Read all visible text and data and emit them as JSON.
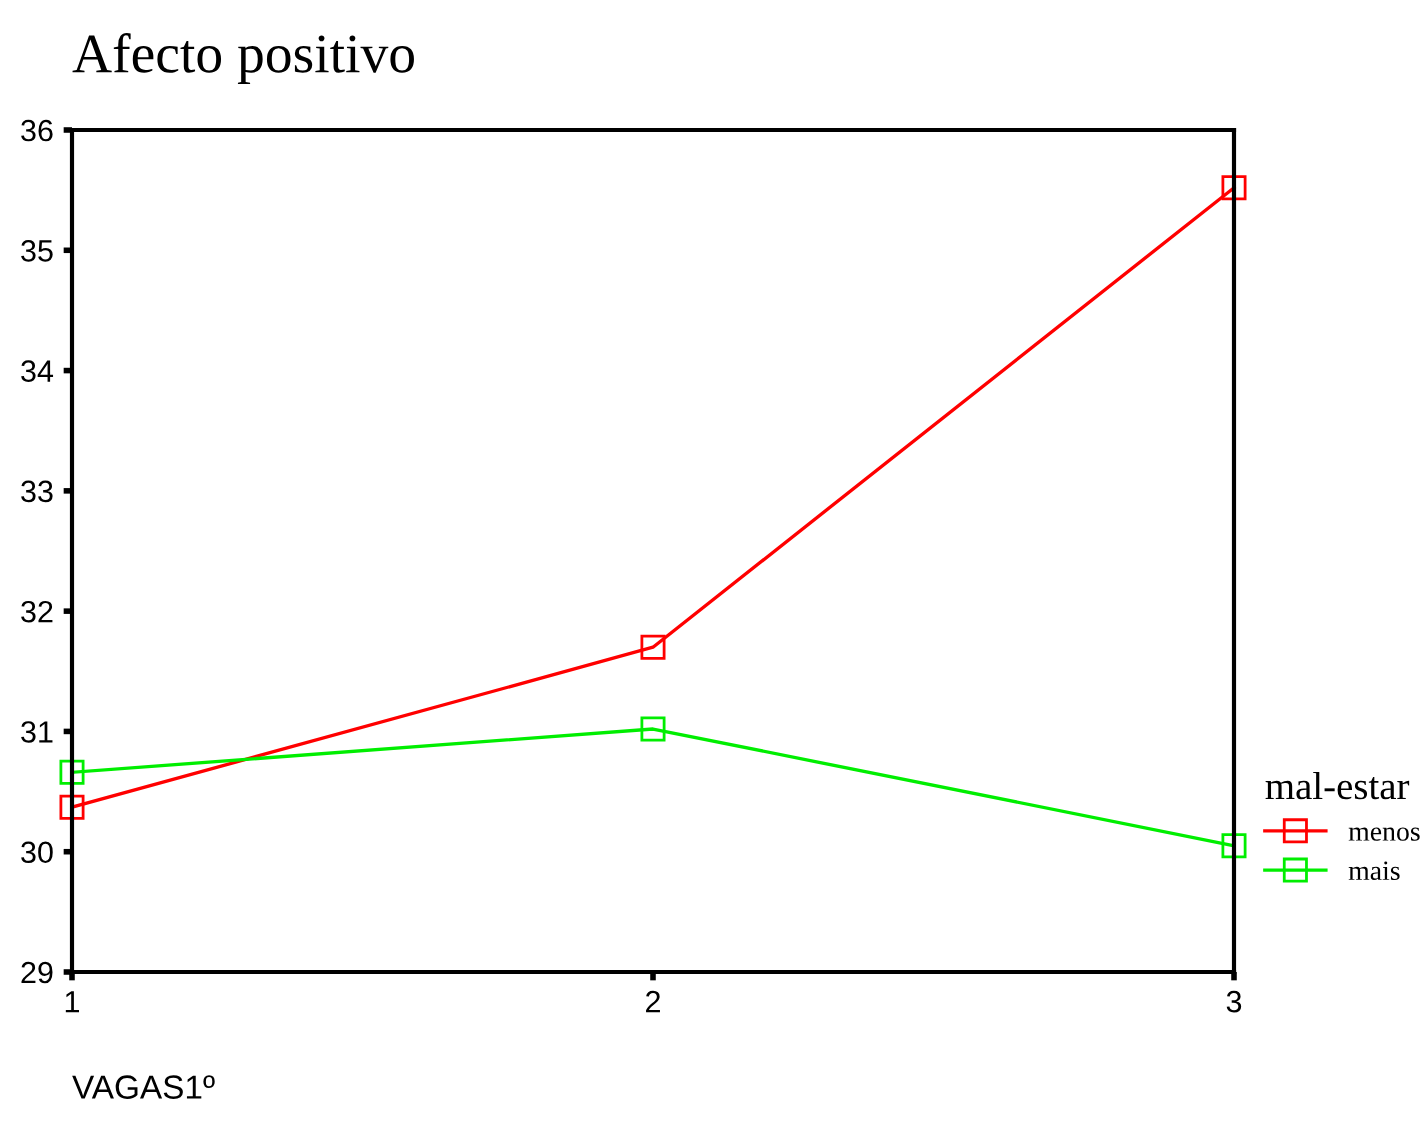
{
  "chart_data": {
    "type": "line",
    "title": "Afecto positivo",
    "xlabel": "VAGAS1º",
    "legend_title": "mal-estar",
    "x": [
      1,
      2,
      3
    ],
    "series": [
      {
        "name": "menos",
        "color": "#ff0000",
        "values": [
          30.37,
          31.7,
          35.52
        ]
      },
      {
        "name": "mais",
        "color": "#00ee00",
        "values": [
          30.66,
          31.02,
          30.05
        ]
      }
    ],
    "xlim": [
      1,
      3
    ],
    "xticks": [
      1,
      2,
      3
    ],
    "ylim": [
      29,
      36
    ],
    "yticks": [
      29,
      30,
      31,
      32,
      33,
      34,
      35,
      36
    ],
    "grid": false,
    "legend": "right",
    "marker": "square",
    "line_style": "solid"
  }
}
